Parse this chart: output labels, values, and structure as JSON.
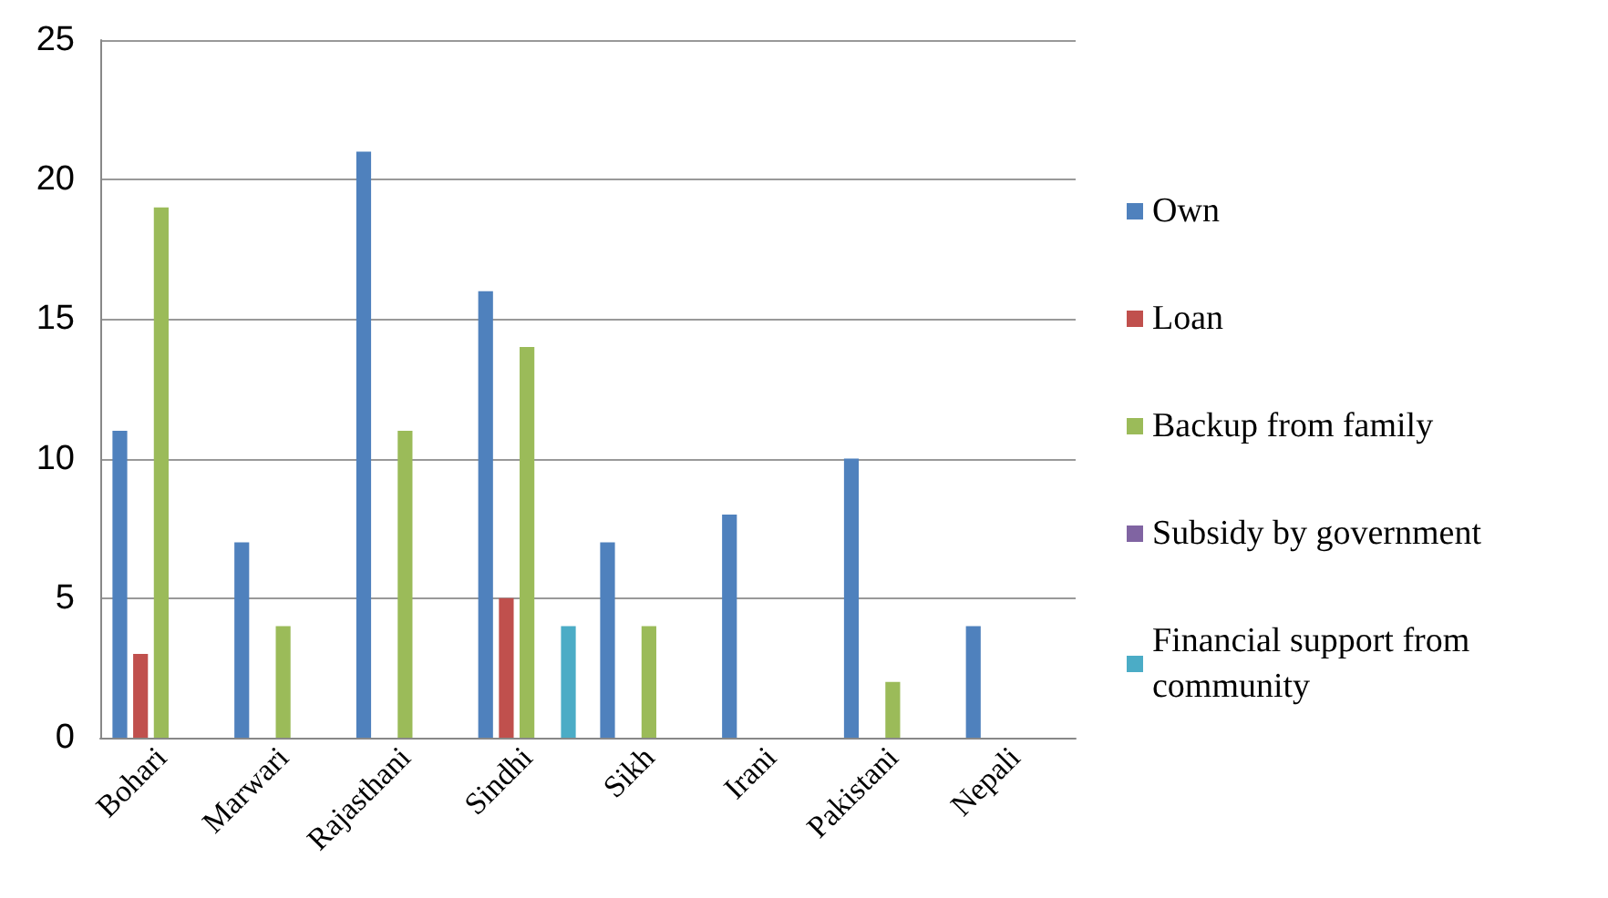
{
  "chart_data": {
    "type": "bar",
    "categories": [
      "Bohari",
      "Marwari",
      "Rajasthani",
      "Sindhi",
      "Sikh",
      "Irani",
      "Pakistani",
      "Nepali"
    ],
    "series": [
      {
        "name": "Own",
        "color": "#4f81bd",
        "values": [
          11,
          7,
          21,
          16,
          7,
          8,
          10,
          4
        ]
      },
      {
        "name": "Loan",
        "color": "#c0504d",
        "values": [
          3,
          0,
          0,
          5,
          0,
          0,
          0,
          0
        ]
      },
      {
        "name": "Backup from family",
        "color": "#9bbb59",
        "values": [
          19,
          4,
          11,
          14,
          4,
          0,
          2,
          0
        ]
      },
      {
        "name": "Subsidy by government",
        "color": "#8064a2",
        "values": [
          0,
          0,
          0,
          0,
          0,
          0,
          0,
          0
        ]
      },
      {
        "name": "Financial support from community",
        "color": "#4bacc6",
        "values": [
          0,
          0,
          0,
          4,
          0,
          0,
          0,
          0
        ]
      }
    ],
    "ylim": [
      0,
      25
    ],
    "yticks": [
      0,
      5,
      10,
      15,
      20,
      25
    ],
    "grid": "y",
    "legend": "right"
  }
}
